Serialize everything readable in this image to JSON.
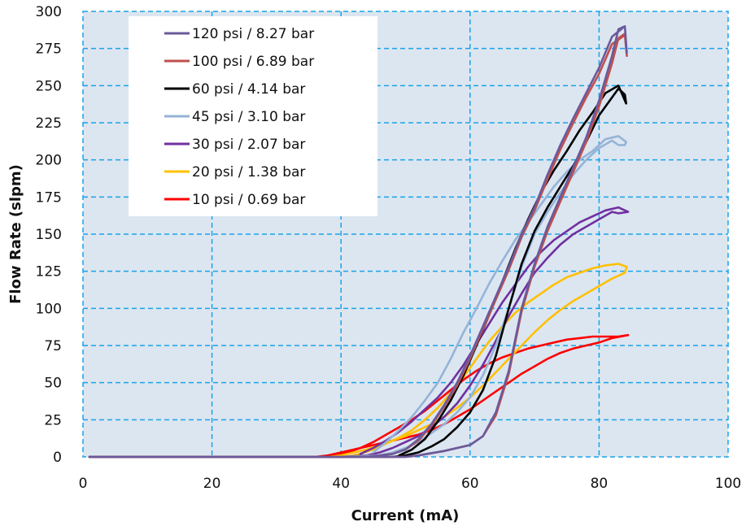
{
  "chart_data": {
    "type": "line",
    "xlabel": "Current (mA)",
    "ylabel": "Flow Rate (slpm)",
    "xlim": [
      0,
      100
    ],
    "ylim": [
      0,
      300
    ],
    "xticks": [
      0,
      20,
      40,
      60,
      80,
      100
    ],
    "yticks": [
      0,
      25,
      50,
      75,
      100,
      125,
      150,
      175,
      200,
      225,
      250,
      275,
      300
    ],
    "grid": true,
    "legend_position": "top-left",
    "plot_background": "#dce6f1",
    "grid_color": "#1aa3e8",
    "series": [
      {
        "name": "120 psi / 8.27 bar",
        "color": "#6a5a9c",
        "x": [
          1,
          10,
          20,
          30,
          40,
          50,
          52,
          56,
          60,
          62,
          64,
          66,
          68,
          70,
          72,
          74,
          76,
          78,
          80,
          82,
          83,
          84,
          84.3,
          84,
          82,
          80,
          78,
          76,
          74,
          72,
          70,
          68,
          66,
          64,
          62,
          60,
          58,
          56,
          54,
          52,
          50,
          48,
          46,
          44
        ],
        "y": [
          0,
          0,
          0,
          0,
          0,
          0,
          1,
          4,
          8,
          14,
          30,
          58,
          100,
          130,
          155,
          175,
          195,
          215,
          240,
          270,
          288,
          290,
          272,
          290,
          283,
          262,
          245,
          228,
          210,
          190,
          168,
          150,
          128,
          108,
          88,
          68,
          50,
          35,
          22,
          12,
          5,
          2,
          1,
          0
        ]
      },
      {
        "name": "100 psi / 6.89 bar",
        "color": "#c0504d",
        "x": [
          1,
          10,
          20,
          30,
          40,
          50,
          52,
          56,
          60,
          62,
          64,
          66,
          68,
          70,
          72,
          74,
          76,
          78,
          80,
          82,
          83,
          84,
          84.3,
          84,
          82,
          80,
          78,
          76,
          74,
          72,
          70,
          68,
          66,
          64,
          62,
          60,
          58,
          56,
          54,
          52,
          50,
          48,
          46,
          44
        ],
        "y": [
          0,
          0,
          0,
          0,
          0,
          0,
          1,
          4,
          8,
          14,
          28,
          56,
          98,
          128,
          152,
          172,
          192,
          212,
          236,
          265,
          282,
          285,
          270,
          284,
          278,
          258,
          242,
          225,
          207,
          187,
          166,
          148,
          126,
          106,
          86,
          66,
          48,
          34,
          21,
          11,
          5,
          2,
          1,
          0
        ]
      },
      {
        "name": "60 psi / 4.14 bar",
        "color": "#000000",
        "x": [
          1,
          10,
          20,
          30,
          40,
          48,
          50,
          52,
          54,
          56,
          58,
          60,
          62,
          64,
          66,
          68,
          70,
          72,
          74,
          76,
          78,
          80,
          82,
          83,
          84,
          84.2,
          83,
          81,
          79,
          77,
          75,
          73,
          71,
          69,
          67,
          65,
          63,
          61,
          59,
          57,
          55,
          53,
          51,
          49
        ],
        "y": [
          0,
          0,
          0,
          0,
          0,
          0,
          1,
          3,
          7,
          12,
          20,
          30,
          45,
          68,
          100,
          130,
          152,
          168,
          182,
          196,
          212,
          230,
          242,
          248,
          244,
          238,
          250,
          245,
          232,
          220,
          206,
          193,
          178,
          160,
          140,
          118,
          96,
          75,
          55,
          38,
          24,
          12,
          5,
          1
        ]
      },
      {
        "name": "45 psi / 3.10 bar",
        "color": "#95b3d7",
        "x": [
          1,
          10,
          20,
          30,
          40,
          46,
          48,
          50,
          52,
          54,
          56,
          58,
          60,
          62,
          64,
          66,
          68,
          70,
          72,
          74,
          76,
          78,
          80,
          82,
          83,
          84,
          84.2,
          83,
          81,
          79,
          77,
          75,
          73,
          71,
          69,
          67,
          65,
          63,
          61,
          59,
          57,
          55,
          53,
          51,
          49,
          47,
          45
        ],
        "y": [
          0,
          0,
          0,
          0,
          0,
          1,
          3,
          6,
          10,
          16,
          22,
          30,
          40,
          55,
          75,
          100,
          128,
          150,
          165,
          178,
          190,
          200,
          208,
          213,
          210,
          210,
          212,
          216,
          214,
          206,
          200,
          192,
          182,
          170,
          158,
          146,
          132,
          117,
          100,
          84,
          66,
          50,
          38,
          27,
          18,
          10,
          3
        ]
      },
      {
        "name": "30 psi / 2.07 bar",
        "color": "#7030a0",
        "x": [
          1,
          10,
          20,
          30,
          40,
          44,
          46,
          48,
          50,
          52,
          54,
          56,
          58,
          60,
          62,
          64,
          66,
          68,
          70,
          72,
          74,
          76,
          78,
          80,
          82,
          83,
          84.5,
          83,
          81,
          79,
          77,
          75,
          73,
          71,
          69,
          67,
          65,
          63,
          61,
          59,
          57,
          55,
          53,
          51,
          49,
          47,
          45,
          43
        ],
        "y": [
          0,
          0,
          0,
          0,
          0,
          1,
          3,
          6,
          10,
          14,
          20,
          27,
          36,
          48,
          62,
          78,
          95,
          110,
          124,
          134,
          143,
          150,
          155,
          160,
          165,
          164,
          165,
          168,
          166,
          162,
          158,
          152,
          146,
          138,
          128,
          116,
          104,
          90,
          76,
          62,
          50,
          40,
          32,
          24,
          17,
          11,
          6,
          2
        ]
      },
      {
        "name": "20 psi / 1.38 bar",
        "color": "#ffc000",
        "x": [
          1,
          10,
          20,
          30,
          38,
          40,
          42,
          44,
          46,
          48,
          50,
          52,
          54,
          56,
          58,
          60,
          62,
          64,
          66,
          68,
          70,
          72,
          74,
          76,
          78,
          80,
          82,
          84,
          84.3,
          83,
          81,
          79,
          77,
          75,
          73,
          71,
          69,
          67,
          65,
          63,
          61,
          59,
          57,
          55,
          53,
          51,
          49,
          47,
          45,
          43,
          41
        ],
        "y": [
          0,
          0,
          0,
          0,
          0,
          1,
          3,
          5,
          8,
          11,
          14,
          18,
          22,
          27,
          33,
          40,
          48,
          57,
          66,
          75,
          84,
          92,
          99,
          105,
          110,
          115,
          120,
          124,
          128,
          130,
          129,
          127,
          124,
          121,
          116,
          110,
          104,
          97,
          88,
          78,
          66,
          54,
          43,
          33,
          25,
          18,
          13,
          9,
          5,
          2,
          0
        ]
      },
      {
        "name": "10 psi / 0.69 bar",
        "color": "#ff0000",
        "x": [
          1,
          10,
          20,
          30,
          36,
          38,
          40,
          42,
          44,
          46,
          48,
          50,
          52,
          54,
          56,
          58,
          60,
          62,
          64,
          66,
          68,
          70,
          72,
          74,
          76,
          78,
          80,
          82,
          84.5,
          83,
          81,
          79,
          77,
          75,
          73,
          71,
          69,
          67,
          65,
          63,
          61,
          59,
          57,
          55,
          53,
          51,
          49,
          47,
          45,
          43,
          41,
          39,
          37
        ],
        "y": [
          0,
          0,
          0,
          0,
          0,
          1,
          3,
          5,
          7,
          9,
          11,
          13,
          15,
          18,
          22,
          27,
          32,
          38,
          44,
          50,
          56,
          61,
          66,
          70,
          73,
          75,
          77,
          80,
          82,
          81,
          81,
          81,
          80,
          79,
          77,
          75,
          73,
          70,
          67,
          63,
          58,
          52,
          45,
          38,
          31,
          25,
          20,
          15,
          10,
          6,
          3,
          1,
          0
        ]
      }
    ]
  }
}
